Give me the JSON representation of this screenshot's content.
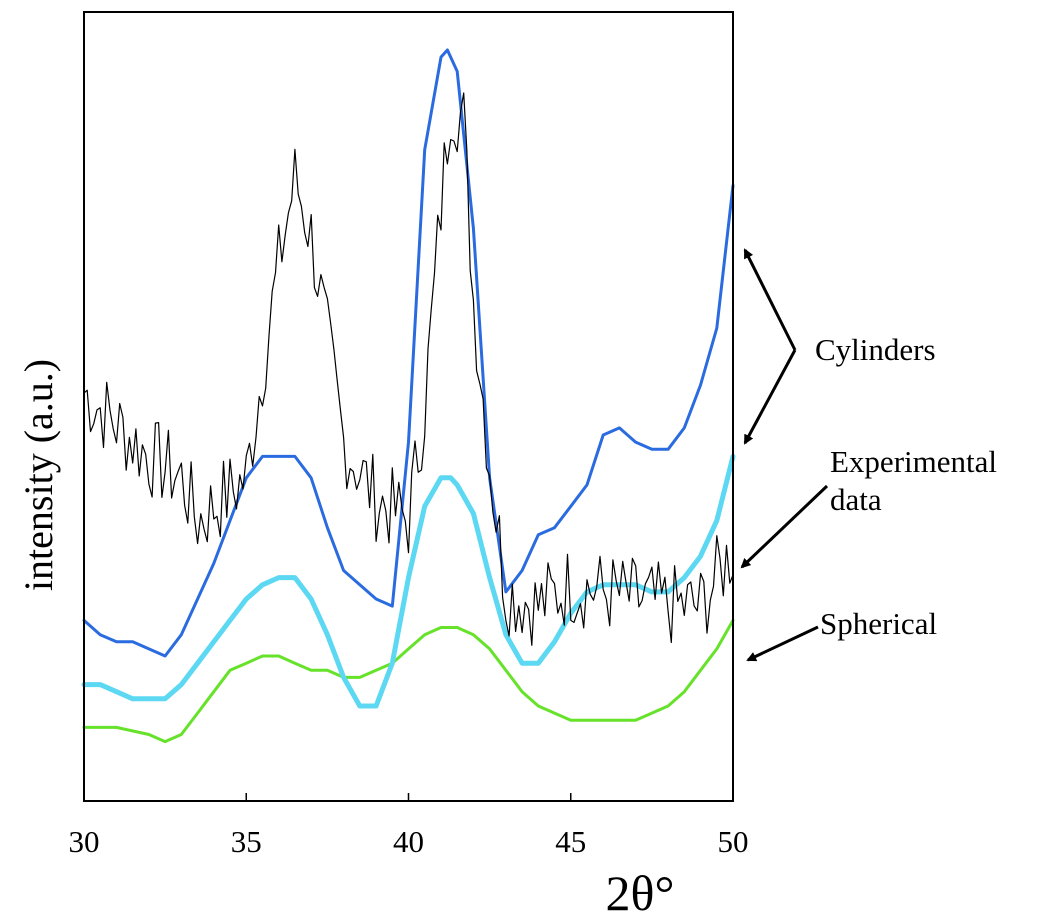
{
  "chart_data": {
    "type": "line",
    "xlabel": "2θ°",
    "ylabel": "intensity (a.u.)",
    "xlim": [
      30,
      50
    ],
    "ylim": [
      0,
      1
    ],
    "xticks": [
      "30",
      "35",
      "40",
      "45",
      "50"
    ],
    "yticks_shown": false,
    "grid": false,
    "legend": "none",
    "annotations": [
      {
        "text": "Cylinders",
        "points_to": [
          "Cylinders (dark blue)",
          "Cylinders (light blue)"
        ]
      },
      {
        "text": "Experimental\ndata",
        "points_to": [
          "Experimental data"
        ]
      },
      {
        "text": "Spherical",
        "points_to": [
          "Spherical"
        ]
      }
    ],
    "series": [
      {
        "label": "Experimental data",
        "color": "#000000",
        "style": "thin-noisy",
        "x": [
          30,
          32,
          33,
          33.5,
          34,
          35,
          35.5,
          36,
          36.5,
          37,
          38,
          39,
          40,
          40.5,
          41,
          41.3,
          41.7,
          42,
          42.5,
          43,
          44,
          45,
          46,
          47,
          48,
          49,
          50
        ],
        "y": [
          0.52,
          0.43,
          0.4,
          0.34,
          0.36,
          0.4,
          0.55,
          0.7,
          0.82,
          0.74,
          0.45,
          0.37,
          0.34,
          0.5,
          0.78,
          0.93,
          0.9,
          0.65,
          0.42,
          0.24,
          0.22,
          0.25,
          0.24,
          0.23,
          0.22,
          0.22,
          0.3
        ]
      },
      {
        "label": "Cylinders (dark blue)",
        "color": "#2a6bdf",
        "x": [
          30,
          30.5,
          31,
          31.5,
          32,
          32.5,
          33,
          33.5,
          34,
          34.5,
          35,
          35.5,
          36,
          36.5,
          37,
          37.5,
          38,
          38.5,
          39,
          39.5,
          40,
          40.5,
          41,
          41.2,
          41.5,
          42,
          42.5,
          43,
          43.5,
          44,
          44.5,
          45,
          45.5,
          46,
          46.5,
          47,
          47.5,
          48,
          48.5,
          49,
          49.5,
          50
        ],
        "y": [
          0.2,
          0.18,
          0.17,
          0.17,
          0.16,
          0.15,
          0.18,
          0.23,
          0.28,
          0.34,
          0.4,
          0.43,
          0.43,
          0.43,
          0.4,
          0.33,
          0.27,
          0.25,
          0.23,
          0.22,
          0.45,
          0.86,
          0.99,
          1.0,
          0.97,
          0.75,
          0.4,
          0.24,
          0.27,
          0.32,
          0.33,
          0.36,
          0.39,
          0.46,
          0.47,
          0.45,
          0.44,
          0.44,
          0.47,
          0.53,
          0.61,
          0.81
        ]
      },
      {
        "label": "Cylinders (light blue)",
        "color": "#5cd8f2",
        "x": [
          30,
          30.5,
          31,
          31.5,
          32,
          32.5,
          33,
          33.5,
          34,
          34.5,
          35,
          35.5,
          36,
          36.5,
          37,
          37.5,
          38,
          38.5,
          39,
          39.5,
          40,
          40.5,
          41,
          41.3,
          41.5,
          42,
          42.5,
          43,
          43.5,
          44,
          44.5,
          45,
          45.5,
          46,
          46.5,
          47,
          47.5,
          48,
          48.5,
          49,
          49.5,
          50
        ],
        "y": [
          0.11,
          0.11,
          0.1,
          0.09,
          0.09,
          0.09,
          0.11,
          0.14,
          0.17,
          0.2,
          0.23,
          0.25,
          0.26,
          0.26,
          0.23,
          0.18,
          0.12,
          0.08,
          0.08,
          0.14,
          0.26,
          0.36,
          0.4,
          0.4,
          0.39,
          0.35,
          0.26,
          0.18,
          0.14,
          0.14,
          0.17,
          0.21,
          0.24,
          0.25,
          0.25,
          0.25,
          0.24,
          0.24,
          0.26,
          0.29,
          0.34,
          0.43
        ]
      },
      {
        "label": "Spherical",
        "color": "#66e22a",
        "x": [
          30,
          31,
          32,
          32.5,
          33,
          33.5,
          34,
          34.5,
          35,
          35.5,
          36,
          36.5,
          37,
          37.5,
          38,
          38.5,
          39,
          39.5,
          40,
          40.5,
          41,
          41.5,
          42,
          42.5,
          43,
          43.5,
          44,
          44.5,
          45,
          45.5,
          46,
          46.5,
          47,
          47.5,
          48,
          48.5,
          49,
          49.5,
          50
        ],
        "y": [
          0.05,
          0.05,
          0.04,
          0.03,
          0.04,
          0.07,
          0.1,
          0.13,
          0.14,
          0.15,
          0.15,
          0.14,
          0.13,
          0.13,
          0.12,
          0.12,
          0.13,
          0.14,
          0.16,
          0.18,
          0.19,
          0.19,
          0.18,
          0.16,
          0.13,
          0.1,
          0.08,
          0.07,
          0.06,
          0.06,
          0.06,
          0.06,
          0.06,
          0.07,
          0.08,
          0.1,
          0.13,
          0.16,
          0.2
        ]
      }
    ]
  }
}
